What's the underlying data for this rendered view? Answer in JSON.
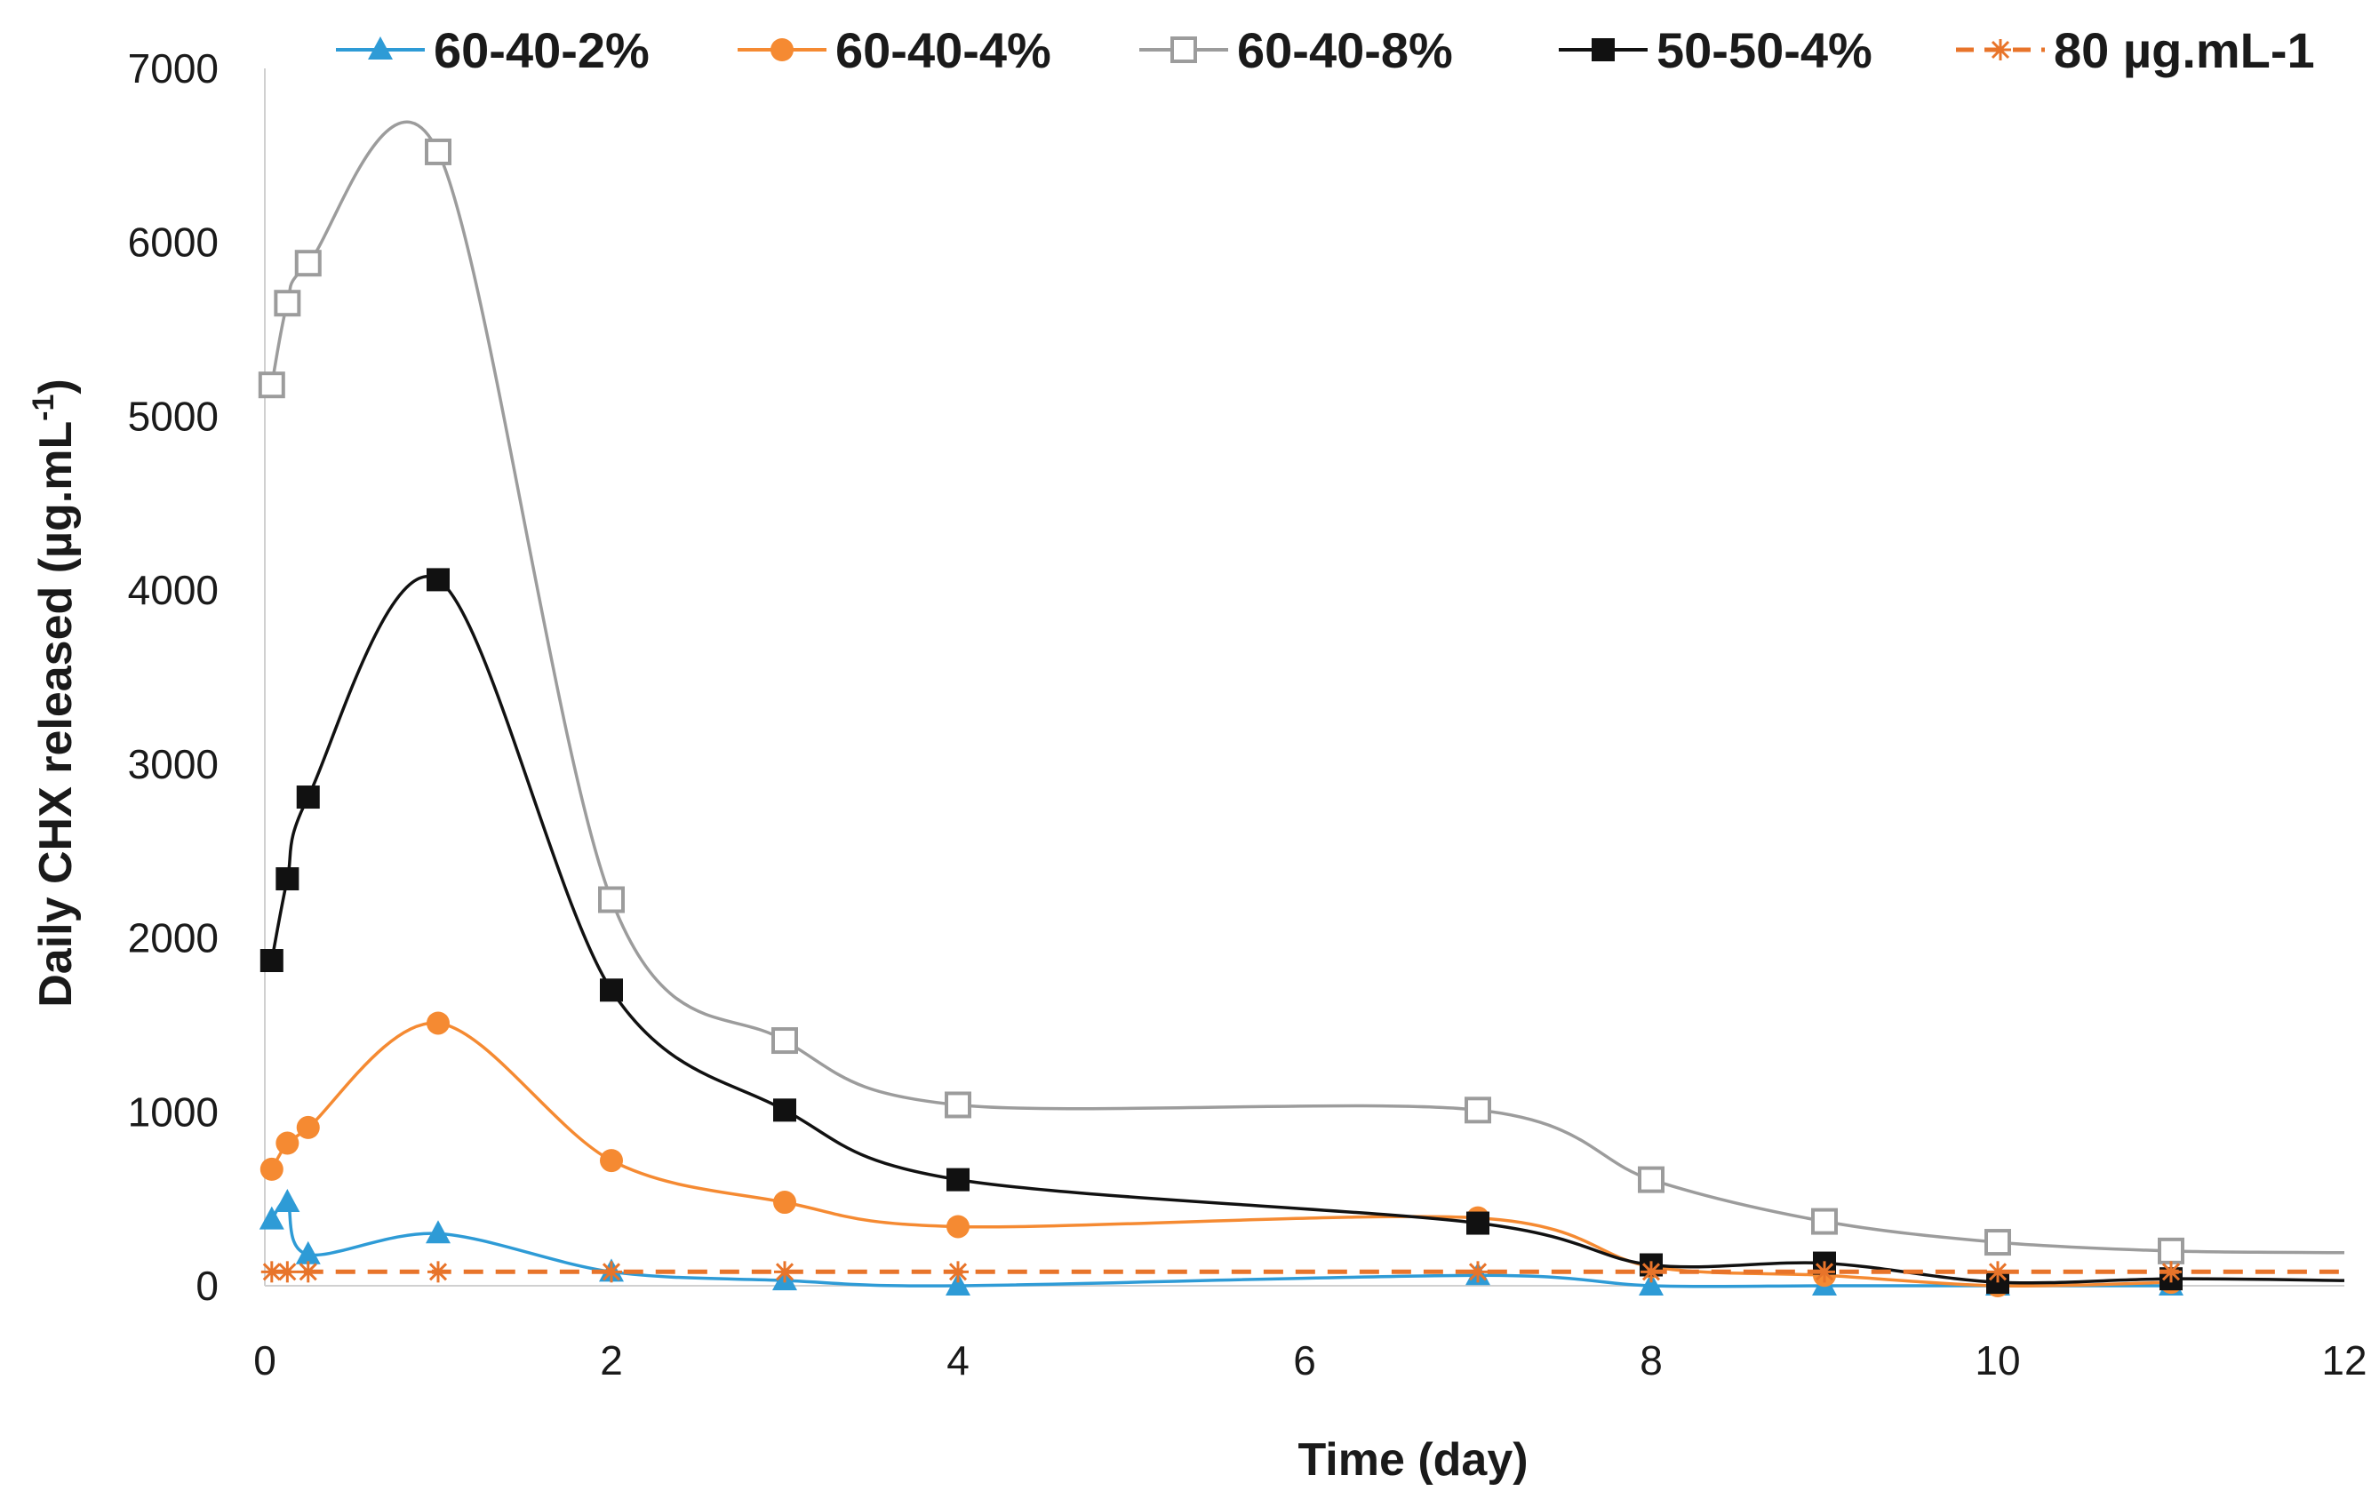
{
  "chart_data": {
    "type": "line",
    "title": "",
    "xlabel": "Time (day)",
    "ylabel_main": "Daily CHX released (µg.mL",
    "ylabel_sup": "-1",
    "ylabel_close": ")",
    "xlim": [
      0,
      12
    ],
    "ylim": [
      0,
      7000
    ],
    "x_ticks": [
      0,
      2,
      4,
      6,
      8,
      10,
      12
    ],
    "y_ticks": [
      0,
      1000,
      2000,
      3000,
      4000,
      5000,
      6000,
      7000
    ],
    "legend_position": "top",
    "series": [
      {
        "name": "60-40-2%",
        "color": "#2e9bd6",
        "marker": "triangle",
        "dashed": false,
        "x": [
          0.04,
          0.13,
          0.25,
          1,
          2,
          3,
          4,
          7,
          8,
          9,
          10,
          11
        ],
        "y": [
          380,
          480,
          180,
          300,
          80,
          30,
          0,
          60,
          0,
          0,
          0,
          0
        ]
      },
      {
        "name": "60-40-4%",
        "color": "#f58a32",
        "marker": "circle",
        "dashed": false,
        "x": [
          0.04,
          0.13,
          0.25,
          1,
          2,
          3,
          4,
          7,
          8,
          9,
          10,
          11
        ],
        "y": [
          670,
          820,
          910,
          1510,
          720,
          480,
          340,
          390,
          110,
          60,
          0,
          20
        ]
      },
      {
        "name": "60-40-8%",
        "color": "#9c9c9c",
        "marker": "square-open",
        "dashed": false,
        "x": [
          0.04,
          0.13,
          0.25,
          1,
          2,
          3,
          4,
          7,
          8,
          9,
          10,
          11
        ],
        "y": [
          5180,
          5650,
          5880,
          6520,
          2220,
          1410,
          1040,
          1010,
          610,
          370,
          250,
          200
        ],
        "tail_y": 190
      },
      {
        "name": "50-50-4%",
        "color": "#111111",
        "marker": "square",
        "dashed": false,
        "x": [
          0.04,
          0.13,
          0.25,
          1,
          2,
          3,
          4,
          7,
          8,
          9,
          10,
          11
        ],
        "y": [
          1870,
          2340,
          2810,
          4060,
          1700,
          1010,
          610,
          360,
          120,
          130,
          20,
          40
        ],
        "tail_y": 30
      },
      {
        "name": "80 µg.mL-1",
        "color": "#e8742a",
        "marker": "asterisk",
        "dashed": true,
        "x": [
          0.04,
          0.13,
          0.25,
          1,
          2,
          3,
          4,
          7,
          8,
          9,
          10,
          11
        ],
        "y": [
          80,
          80,
          80,
          80,
          80,
          80,
          80,
          80,
          80,
          80,
          80,
          80
        ],
        "tail_y": 80
      }
    ]
  }
}
